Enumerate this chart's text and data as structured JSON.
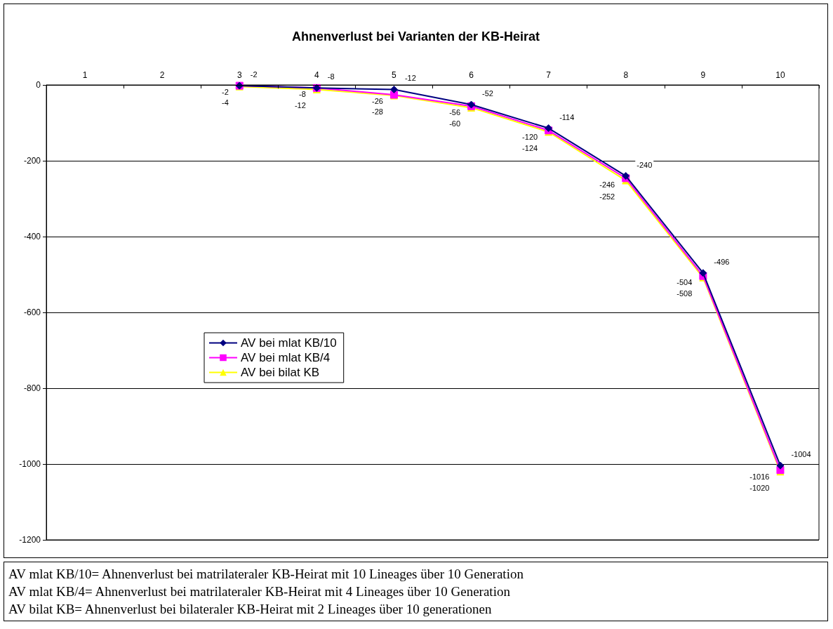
{
  "chart_data": {
    "type": "line",
    "title": "Ahnenverlust bei Varianten der KB-Heirat",
    "categories": [
      "1",
      "2",
      "3",
      "4",
      "5",
      "6",
      "7",
      "8",
      "9",
      "10"
    ],
    "series": [
      {
        "name": "AV bei mlat KB/10",
        "color": "#000080",
        "marker": "diamond",
        "values": [
          null,
          null,
          -2,
          -8,
          -12,
          -52,
          -114,
          -240,
          -496,
          -1004
        ]
      },
      {
        "name": "AV bei mlat KB/4",
        "color": "#ff00ff",
        "marker": "square",
        "values": [
          null,
          null,
          -2,
          -8,
          -26,
          -56,
          -120,
          -246,
          -504,
          -1016
        ]
      },
      {
        "name": "AV bei bilat KB",
        "color": "#ffff00",
        "marker": "triangle",
        "values": [
          null,
          null,
          -4,
          -12,
          -28,
          -60,
          -124,
          -252,
          -508,
          -1020
        ]
      }
    ],
    "ylim": [
      -1200,
      0
    ],
    "yticks": [
      -1200,
      -1000,
      -800,
      -600,
      -400,
      -200,
      0
    ],
    "grid": "y",
    "legend": "left",
    "data_labels": true,
    "annotations": [
      "AV mlat KB/10= Ahnenverlust bei matrilateraler KB-Heirat mit 10 Lineages über 10 Generation",
      "AV mlat KB/4= Ahnenverlust bei matrilateraler KB-Heirat mit 4 Lineages über 10 Generation",
      "AV bilat KB= Ahnenverlust bei bilateraler KB-Heirat mit 2 Lineages über 10 generationen"
    ]
  }
}
